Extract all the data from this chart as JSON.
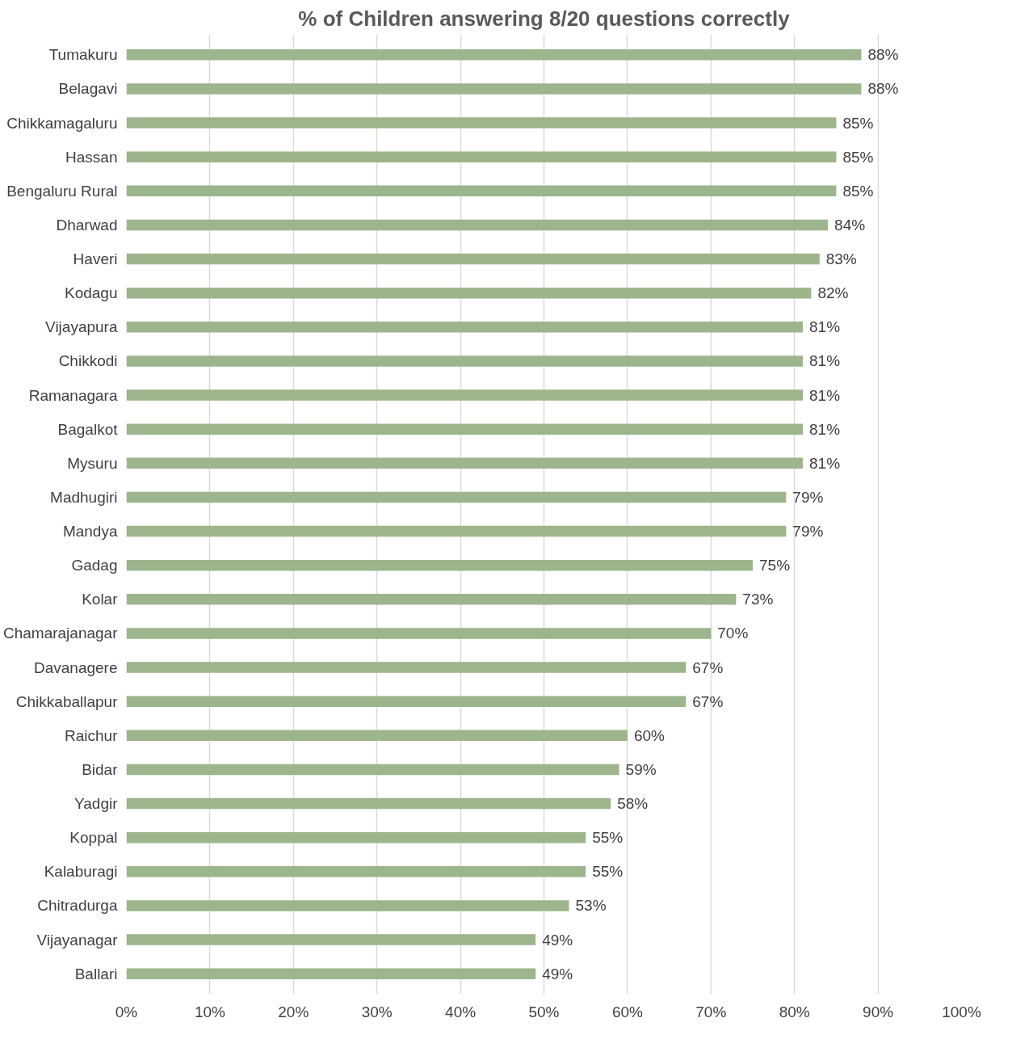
{
  "chart_data": {
    "type": "bar",
    "orientation": "horizontal",
    "title": "% of Children answering 8/20 questions correctly",
    "categories": [
      "Tumakuru",
      "Belagavi",
      "Chikkamagaluru",
      "Hassan",
      "Bengaluru Rural",
      "Dharwad",
      "Haveri",
      "Kodagu",
      "Vijayapura",
      "Chikkodi",
      "Ramanagara",
      "Bagalkot",
      "Mysuru",
      "Madhugiri",
      "Mandya",
      "Gadag",
      "Kolar",
      "Chamarajanagar",
      "Davanagere",
      "Chikkaballapur",
      "Raichur",
      "Bidar",
      "Yadgir",
      "Koppal",
      "Kalaburagi",
      "Chitradurga",
      "Vijayanagar",
      "Ballari"
    ],
    "values": [
      88,
      88,
      85,
      85,
      85,
      84,
      83,
      82,
      81,
      81,
      81,
      81,
      81,
      79,
      79,
      75,
      73,
      70,
      67,
      67,
      60,
      59,
      58,
      55,
      55,
      53,
      49,
      49
    ],
    "value_labels": [
      "88%",
      "88%",
      "85%",
      "85%",
      "85%",
      "84%",
      "83%",
      "82%",
      "81%",
      "81%",
      "81%",
      "81%",
      "81%",
      "79%",
      "79%",
      "75%",
      "73%",
      "70%",
      "67%",
      "67%",
      "60%",
      "59%",
      "58%",
      "55%",
      "55%",
      "53%",
      "49%",
      "49%"
    ],
    "color": "#9cb58c",
    "xlim": [
      0,
      100
    ],
    "xticks": [
      {
        "value": 0,
        "label": "0%"
      },
      {
        "value": 10,
        "label": "10%"
      },
      {
        "value": 20,
        "label": "20%"
      },
      {
        "value": 30,
        "label": "30%"
      },
      {
        "value": 40,
        "label": "40%"
      },
      {
        "value": 50,
        "label": "50%"
      },
      {
        "value": 60,
        "label": "60%"
      },
      {
        "value": 70,
        "label": "70%"
      },
      {
        "value": 80,
        "label": "80%"
      },
      {
        "value": 90,
        "label": "90%"
      },
      {
        "value": 100,
        "label": "100%"
      }
    ],
    "grid": "x"
  }
}
